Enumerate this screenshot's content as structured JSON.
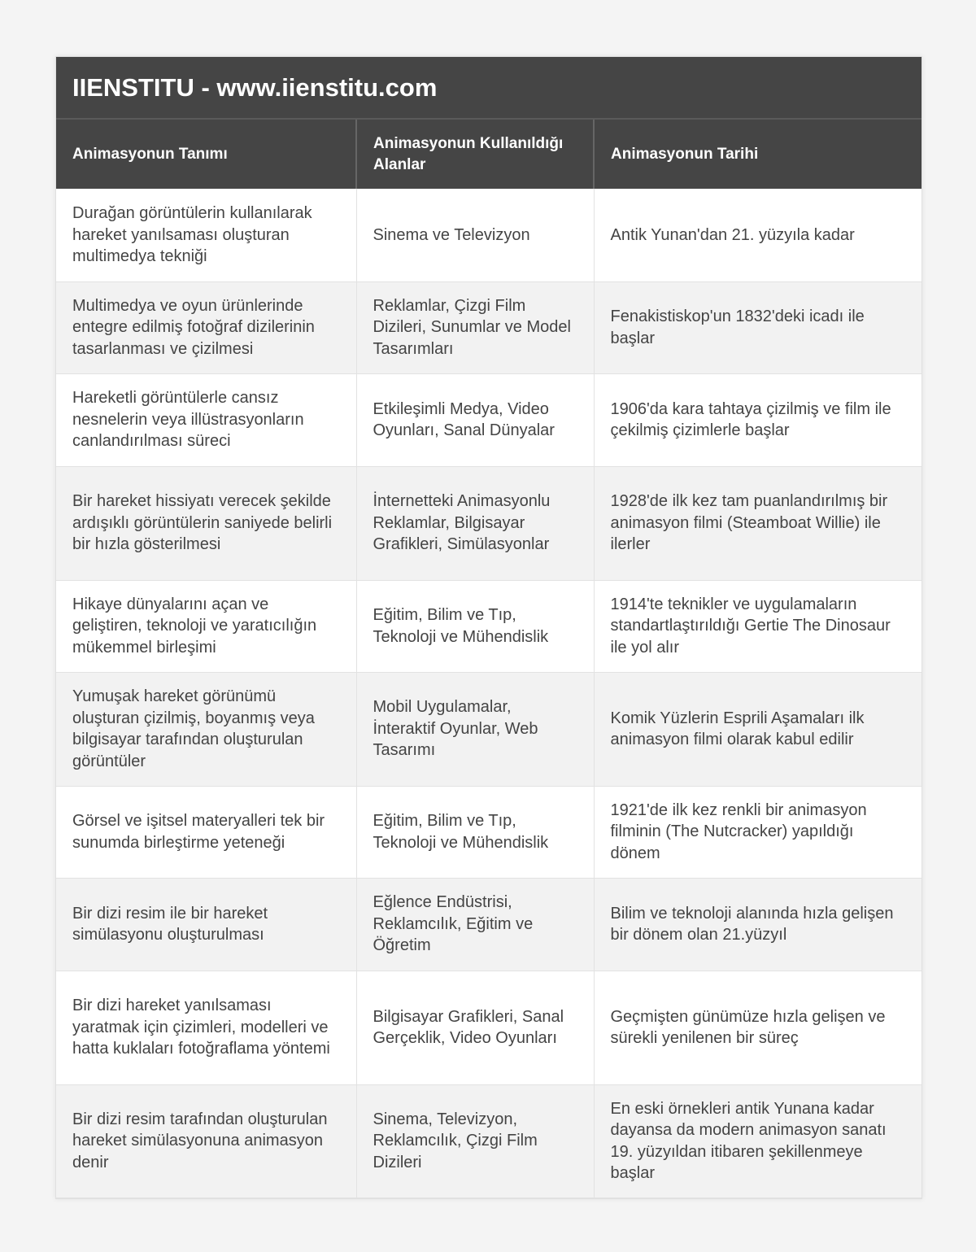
{
  "title": "IIENSTITU - www.iienstitu.com",
  "headers": [
    "Animasyonun Tanımı",
    "Animasyonun Kullanıldığı Alanlar",
    "Animasyonun Tarihi"
  ],
  "rows": [
    [
      "Durağan görüntülerin kullanılarak hareket yanılsaması oluşturan multimedya tekniği",
      "Sinema ve Televizyon",
      "Antik Yunan'dan 21. yüzyıla kadar"
    ],
    [
      "Multimedya ve oyun ürünlerinde entegre edilmiş fotoğraf dizilerinin tasarlanması ve çizilmesi",
      "Reklamlar, Çizgi Film Dizileri, Sunumlar ve Model Tasarımları",
      "Fenakistiskop'un 1832'deki icadı ile başlar"
    ],
    [
      "Hareketli görüntülerle cansız nesnelerin veya illüstrasyonların canlandırılması süreci",
      "Etkileşimli Medya, Video Oyunları, Sanal Dünyalar",
      "1906'da kara tahtaya çizilmiş ve film ile çekilmiş çizimlerle başlar"
    ],
    [
      "Bir hareket hissiyatı verecek şekilde ardışıklı görüntülerin saniyede belirli bir hızla gösterilmesi",
      "İnternetteki Animasyonlu Reklamlar, Bilgisayar Grafikleri, Simülasyonlar",
      "1928'de ilk kez tam puanlandırılmış bir animasyon filmi (Steamboat Willie) ile ilerler"
    ],
    [
      "Hikaye dünyalarını açan ve geliştiren, teknoloji ve yaratıcılığın mükemmel birleşimi",
      "Eğitim, Bilim ve Tıp, Teknoloji ve Mühendislik",
      "1914'te teknikler ve uygulamaların standartlaştırıldığı Gertie The Dinosaur ile yol alır"
    ],
    [
      "Yumuşak hareket görünümü oluşturan çizilmiş, boyanmış veya bilgisayar tarafından oluşturulan görüntüler",
      "Mobil Uygulamalar, İnteraktif Oyunlar, Web Tasarımı",
      "Komik Yüzlerin Esprili Aşamaları ilk animasyon filmi olarak kabul edilir"
    ],
    [
      "Görsel ve işitsel materyalleri tek bir sunumda birleştirme yeteneği",
      "Eğitim, Bilim ve Tıp, Teknoloji ve Mühendislik",
      "1921'de ilk kez renkli bir animasyon filminin (The Nutcracker) yapıldığı dönem"
    ],
    [
      "Bir dizi resim ile bir hareket simülasyonu oluşturulması",
      "Eğlence Endüstrisi, Reklamcılık, Eğitim ve Öğretim",
      "Bilim ve teknoloji alanında hızla gelişen bir dönem olan 21.yüzyıl"
    ],
    [
      "Bir dizi hareket yanılsaması yaratmak için çizimleri, modelleri ve hatta kuklaları fotoğraflama yöntemi",
      "Bilgisayar Grafikleri, Sanal Gerçeklik, Video Oyunları",
      "Geçmişten günümüze hızla gelişen ve sürekli yenilenen bir süreç"
    ],
    [
      "Bir dizi resim tarafından oluşturulan hareket simülasyonuna animasyon denir",
      "Sinema, Televizyon, Reklamcılık, Çizgi Film Dizileri",
      "En eski örnekleri antik Yunana kadar dayansa da modern animasyon sanatı 19. yüzyıldan itibaren şekillenmeye başlar"
    ]
  ]
}
